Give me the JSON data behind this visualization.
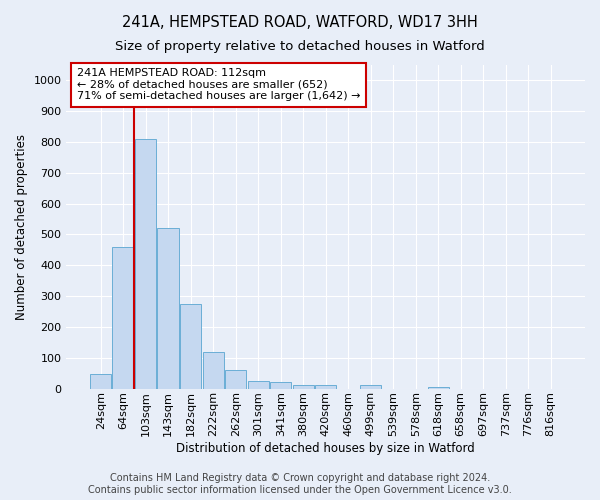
{
  "title": "241A, HEMPSTEAD ROAD, WATFORD, WD17 3HH",
  "subtitle": "Size of property relative to detached houses in Watford",
  "xlabel": "Distribution of detached houses by size in Watford",
  "ylabel": "Number of detached properties",
  "bar_labels": [
    "24sqm",
    "64sqm",
    "103sqm",
    "143sqm",
    "182sqm",
    "222sqm",
    "262sqm",
    "301sqm",
    "341sqm",
    "380sqm",
    "420sqm",
    "460sqm",
    "499sqm",
    "539sqm",
    "578sqm",
    "618sqm",
    "658sqm",
    "697sqm",
    "737sqm",
    "776sqm",
    "816sqm"
  ],
  "bar_values": [
    46,
    460,
    810,
    520,
    275,
    120,
    60,
    25,
    20,
    10,
    10,
    0,
    10,
    0,
    0,
    5,
    0,
    0,
    0,
    0,
    0
  ],
  "bar_color": "#c5d8f0",
  "bar_edge_color": "#6aaed6",
  "vline_color": "#cc0000",
  "annotation_text": "241A HEMPSTEAD ROAD: 112sqm\n← 28% of detached houses are smaller (652)\n71% of semi-detached houses are larger (1,642) →",
  "annotation_box_color": "#ffffff",
  "annotation_box_edge_color": "#cc0000",
  "ylim": [
    0,
    1050
  ],
  "yticks": [
    0,
    100,
    200,
    300,
    400,
    500,
    600,
    700,
    800,
    900,
    1000
  ],
  "footer_line1": "Contains HM Land Registry data © Crown copyright and database right 2024.",
  "footer_line2": "Contains public sector information licensed under the Open Government Licence v3.0.",
  "background_color": "#e8eef8",
  "grid_color": "#ffffff",
  "title_fontsize": 10.5,
  "subtitle_fontsize": 9.5,
  "axis_label_fontsize": 8.5,
  "tick_fontsize": 8,
  "annotation_fontsize": 8,
  "footer_fontsize": 7
}
